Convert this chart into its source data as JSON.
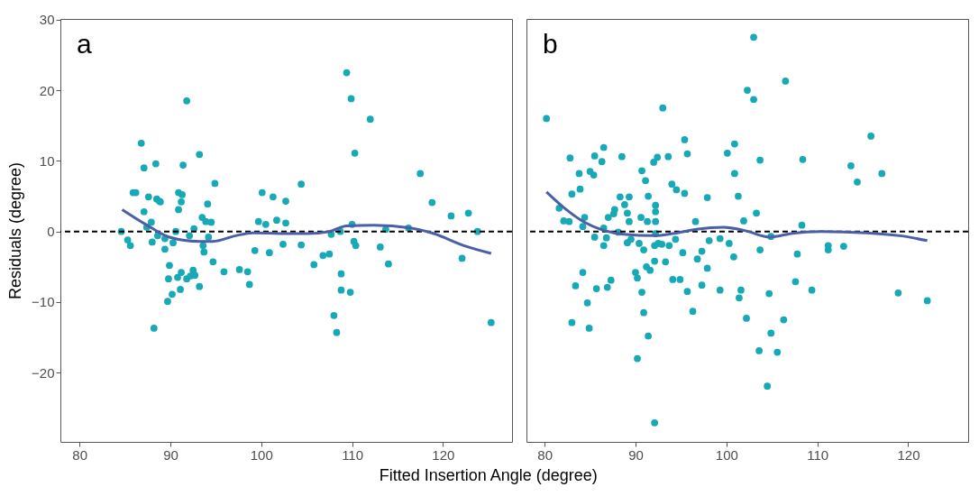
{
  "chart_data": [
    {
      "type": "scatter",
      "xlabel": "Fitted Insertion Angle (degree)",
      "ylabel": "Residuals (degree)",
      "annotations": [
        "a"
      ],
      "xlim": [
        77.9,
        127.6
      ],
      "ylim": [
        -29.8,
        30.1
      ],
      "xticks": [
        80,
        90,
        100,
        110,
        120
      ],
      "yticks": [
        -20,
        -10,
        0,
        10,
        20,
        30
      ],
      "grid": false,
      "marker": "circle",
      "ref_lines": [
        {
          "axis": "y",
          "value": 0,
          "color": "#000000",
          "line_style": "dashed"
        }
      ],
      "series": [
        {
          "color": "#17a9b5",
          "x": [
            84.6,
            85.3,
            85.6,
            85.9,
            86.2,
            86.8,
            87.1,
            87.1,
            87.4,
            87.6,
            87.9,
            88.0,
            88.2,
            88.4,
            88.5,
            88.6,
            88.8,
            88.9,
            89.4,
            89.4,
            89.7,
            89.9,
            89.8,
            90.2,
            90.3,
            90.6,
            90.8,
            90.9,
            90.9,
            91.2,
            91.1,
            91.2,
            91.3,
            91.4,
            91.8,
            91.8,
            92.1,
            92.2,
            92.5,
            92.6,
            92.7,
            93.2,
            93.2,
            93.5,
            93.6,
            93.7,
            93.9,
            94.1,
            94.2,
            94.5,
            94.7,
            94.9,
            95.9,
            97.6,
            98.5,
            98.7,
            99.3,
            99.7,
            100.1,
            100.5,
            100.9,
            101.3,
            101.7,
            102.4,
            102.7,
            102.7,
            104.4,
            104.4,
            105.8,
            106.8,
            107.5,
            107.7,
            108.0,
            108.3,
            108.7,
            108.8,
            108.8,
            109.4,
            109.8,
            109.9,
            110.0,
            110.2,
            110.3,
            110.4,
            112.0,
            113.1,
            113.7,
            114.0,
            116.2,
            117.5,
            118.8,
            120.9,
            122.1,
            122.8,
            123.8,
            125.3
          ],
          "values": [
            0,
            -1.2,
            -2.0,
            5.5,
            5.5,
            12.5,
            9.0,
            2.8,
            0.6,
            4.9,
            1.3,
            -1.5,
            -13.7,
            9.6,
            4.6,
            -0.6,
            4.3,
            4.2,
            -1.0,
            -2.5,
            -9.9,
            -4.8,
            -6.7,
            -8.9,
            -1.6,
            0,
            -6.5,
            3.1,
            5.5,
            4.2,
            -8.2,
            -5.8,
            5.2,
            9.4,
            18.5,
            -6.7,
            -0.6,
            -6.3,
            -5.5,
            0.4,
            -6.2,
            10.9,
            -7.8,
            2.0,
            -2.0,
            -2.9,
            1.4,
            3.9,
            -0.8,
            1.3,
            -4.3,
            6.8,
            -5.7,
            -5.4,
            -5.7,
            -7.5,
            -2.7,
            1.4,
            5.5,
            1.0,
            -3.0,
            4.9,
            1.6,
            -1.8,
            4.3,
            1.2,
            6.7,
            -1.9,
            -4.7,
            -3.4,
            -3.2,
            -0.4,
            -11.9,
            -14.3,
            0,
            -6.0,
            -8.3,
            22.5,
            -8.6,
            18.8,
            1.0,
            -1.4,
            11.1,
            -2.0,
            15.9,
            -2.2,
            0.3,
            -4.6,
            0.5,
            8.2,
            4.1,
            2.2,
            -3.8,
            2.6,
            0,
            -12.9
          ]
        },
        {
          "type": "line",
          "marker": "none",
          "color": "#4a5fa8",
          "x": [
            84.7,
            87.3,
            89.9,
            93.2,
            94.7,
            97.2,
            99.1,
            103.7,
            105.1,
            107.5,
            109.4,
            112.4,
            116.4,
            119.0,
            122.3,
            125.3
          ],
          "values": [
            3.1,
            1.0,
            -0.8,
            -1.4,
            -1.4,
            -0.6,
            -0.2,
            -0.3,
            -0.3,
            0,
            0.8,
            0.9,
            0.5,
            -0.3,
            -2.0,
            -3.1
          ]
        }
      ]
    },
    {
      "type": "scatter",
      "annotations": [
        "b"
      ],
      "xlim": [
        78.0,
        126.6
      ],
      "ylim": [
        -29.8,
        30.1
      ],
      "xticks": [
        80,
        90,
        100,
        110,
        120
      ],
      "yticks": [
        -20,
        -10,
        0,
        10,
        20,
        30
      ],
      "tick_labels": "x",
      "grid": false,
      "marker": "circle",
      "ref_lines": [
        {
          "axis": "y",
          "value": 0,
          "color": "#000000",
          "line_style": "dashed"
        }
      ],
      "series": [
        {
          "color": "#17a9b5",
          "x": [
            80.2,
            81.6,
            82.1,
            82.7,
            82.8,
            83.0,
            83.0,
            83.4,
            83.8,
            83.9,
            84.2,
            84.2,
            84.4,
            84.7,
            84.9,
            85.0,
            85.4,
            85.5,
            85.5,
            85.7,
            86.3,
            86.5,
            86.5,
            86.5,
            86.8,
            86.9,
            87.0,
            87.3,
            87.6,
            87.7,
            88.1,
            88.3,
            88.5,
            88.8,
            89.1,
            89.1,
            89.3,
            89.3,
            89.5,
            90.0,
            90.2,
            90.2,
            90.4,
            90.6,
            90.7,
            90.7,
            90.9,
            90.9,
            91.1,
            91.2,
            91.3,
            91.4,
            91.4,
            91.6,
            92.0,
            92.1,
            92.1,
            92.2,
            92.2,
            92.2,
            92.2,
            92.1,
            92.4,
            92.5,
            93.0,
            92.9,
            93.3,
            93.6,
            93.7,
            94.0,
            94.1,
            94.4,
            94.5,
            94.9,
            95.2,
            95.4,
            95.4,
            95.7,
            95.7,
            96.3,
            96.6,
            96.8,
            97.3,
            97.3,
            97.9,
            97.9,
            98.1,
            99.3,
            99.3,
            100.1,
            100.3,
            100.8,
            100.9,
            100.9,
            101.3,
            101.4,
            101.6,
            101.9,
            102.2,
            102.3,
            103.0,
            103.0,
            103.3,
            103.7,
            103.7,
            103.6,
            104.7,
            104.9,
            104.9,
            104.5,
            105.6,
            106.3,
            106.5,
            107.6,
            107.8,
            108.3,
            108.4,
            109.4,
            111.2,
            111.2,
            112.9,
            113.7,
            114.4,
            115.9,
            117.1,
            118.9,
            122.1
          ],
          "values": [
            16.0,
            3.3,
            1.5,
            1.4,
            10.4,
            -12.9,
            5.3,
            -7.7,
            8.2,
            6.0,
            0.7,
            -5.8,
            2.0,
            -10.1,
            -13.7,
            8.5,
            8.0,
            10.7,
            -0.8,
            -8.1,
            9.9,
            11.9,
            -2.0,
            0.5,
            -0.9,
            -7.9,
            2.0,
            -6.9,
            2.5,
            3.1,
            -0.1,
            4.9,
            10.6,
            3.8,
            -1.6,
            2.6,
            4.9,
            1.4,
            -1.1,
            -5.8,
            -18.0,
            -6.6,
            -1.7,
            2.0,
            8.6,
            -8.6,
            -2.6,
            -11.5,
            7.2,
            -5.0,
            1.4,
            5.0,
            -14.8,
            -5.5,
            9.8,
            -27.1,
            -4.2,
            3.7,
            2.8,
            1.4,
            -0.3,
            -2.0,
            10.5,
            -1.7,
            17.5,
            -1.8,
            -4.3,
            10.6,
            -2.0,
            6.7,
            -6.8,
            -1.1,
            5.9,
            -6.8,
            -3.0,
            5.4,
            13.0,
            11.0,
            -8.5,
            -11.3,
            1.4,
            -3.9,
            -7.6,
            -2.8,
            4.8,
            -5.2,
            -1.3,
            -8.3,
            -1.0,
            11.1,
            -1.7,
            -3.6,
            12.4,
            8.2,
            5.0,
            -9.4,
            -8.3,
            1.5,
            -12.3,
            20.0,
            27.5,
            18.7,
            2.6,
            10.1,
            -2.6,
            -16.9,
            -8.8,
            -0.7,
            -14.4,
            -21.9,
            -17.1,
            -12.5,
            21.3,
            -7.1,
            -3.2,
            0.9,
            10.2,
            -8.3,
            -2.0,
            -2.6,
            -2.1,
            9.3,
            7.0,
            13.5,
            8.2,
            -8.7,
            -9.8
          ]
        },
        {
          "type": "line",
          "marker": "none",
          "color": "#4a5fa8",
          "x": [
            80.2,
            82.1,
            84.4,
            86.4,
            88.7,
            92.1,
            94.1,
            96.7,
            99.7,
            102.1,
            104.8,
            107.1,
            110.4,
            115.4,
            119.1,
            122.1
          ],
          "values": [
            5.6,
            3.4,
            1.3,
            0.2,
            -0.4,
            -0.6,
            -0.3,
            0.3,
            0.6,
            0.1,
            -0.8,
            -0.3,
            0,
            -0.2,
            -0.6,
            -1.3
          ]
        }
      ]
    }
  ]
}
